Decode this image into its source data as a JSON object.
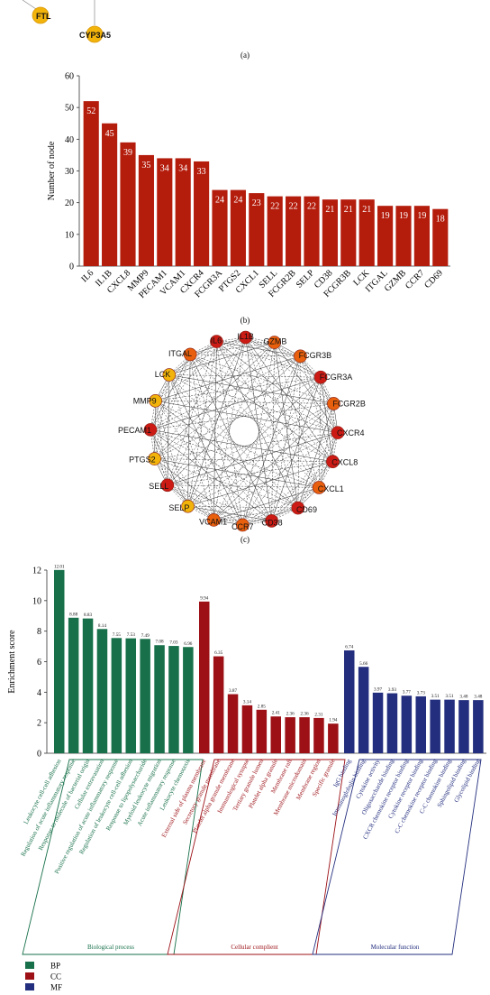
{
  "panel_a": {
    "caption": "(a)",
    "nodes": [
      {
        "label": "FTL",
        "color": "#f2b30b"
      },
      {
        "label": "CYP3A5",
        "color": "#f2b30b"
      }
    ]
  },
  "panel_b": {
    "caption": "(b)"
  },
  "panel_c": {
    "caption": "(c)",
    "nodes": [
      {
        "label": "IL1B",
        "color": "#cc1b14"
      },
      {
        "label": "GZMB",
        "color": "#e8600d"
      },
      {
        "label": "FCGR3B",
        "color": "#e8600d"
      },
      {
        "label": "FCGR3A",
        "color": "#cc1b14"
      },
      {
        "label": "FCGR2B",
        "color": "#e8600d"
      },
      {
        "label": "CXCR4",
        "color": "#cc1b14"
      },
      {
        "label": "CXCL8",
        "color": "#cc1b14"
      },
      {
        "label": "CXCL1",
        "color": "#e8600d"
      },
      {
        "label": "CD69",
        "color": "#cc1b14"
      },
      {
        "label": "CD38",
        "color": "#cc1b14"
      },
      {
        "label": "CCR7",
        "color": "#e8600d"
      },
      {
        "label": "VCAM1",
        "color": "#e8600d"
      },
      {
        "label": "SELP",
        "color": "#f2b30b"
      },
      {
        "label": "SELL",
        "color": "#cc1b14"
      },
      {
        "label": "PTGS2",
        "color": "#f2b30b"
      },
      {
        "label": "PECAM1",
        "color": "#cc1b14"
      },
      {
        "label": "MMP9",
        "color": "#f2b30b"
      },
      {
        "label": "LCK",
        "color": "#f2b30b"
      },
      {
        "label": "ITGAL",
        "color": "#e8600d"
      },
      {
        "label": "IL6",
        "color": "#cc1b14"
      }
    ]
  },
  "chart_data": [
    {
      "type": "bar",
      "ylabel": "Number of node",
      "ylim": [
        0,
        60
      ],
      "yticks": [
        0,
        10,
        20,
        30,
        40,
        50,
        60
      ],
      "bar_color": "#b41c0c",
      "categories": [
        "IL6",
        "IL1B",
        "CXCL8",
        "MMP9",
        "PECAM1",
        "VCAM1",
        "CXCR4",
        "FCGR3A",
        "PTGS2",
        "CXCL1",
        "SELL",
        "FCGR2B",
        "SELP",
        "CD38",
        "FCGR3B",
        "LCK",
        "ITGAL",
        "GZMB",
        "CCR7",
        "CD69"
      ],
      "values": [
        52,
        45,
        39,
        35,
        34,
        34,
        33,
        24,
        24,
        23,
        22,
        22,
        22,
        21,
        21,
        21,
        19,
        19,
        19,
        18
      ],
      "data_labels": [
        "52",
        "45",
        "39",
        "35",
        "34",
        "34",
        "33",
        "24",
        "24",
        "23",
        "22",
        "22",
        "22",
        "21",
        "21",
        "21",
        "19",
        "19",
        "19",
        "18"
      ]
    },
    {
      "type": "bar",
      "ylabel": "Enrichment score",
      "ylim": [
        0,
        12
      ],
      "yticks": [
        0,
        2,
        4,
        6,
        8,
        10,
        12
      ],
      "series": [
        {
          "name": "BP",
          "color": "#17704a",
          "group_label": "Biological process",
          "categories": [
            "Leukocyte cell-cell adhesion",
            "Regulation of acute inflammatory response",
            "Response to molecule of bacterial origin",
            "Cellular extravasation",
            "Positive regulation of acute inflammatory response",
            "Regulation of leukocyte cell-cell adhesion",
            "Response to lipopolysaccharide",
            "Myeloid leukocyte migration",
            "Acute inflammatory response",
            "Leukocyte chemotaxis"
          ],
          "values": [
            12.01,
            8.88,
            8.83,
            8.14,
            7.55,
            7.53,
            7.49,
            7.08,
            7.03,
            6.96
          ],
          "data_labels": [
            "12.01",
            "8.88",
            "8.83",
            "8.14",
            "7.55",
            "7.53",
            "7.49",
            "7.08",
            "7.03",
            "6.96"
          ]
        },
        {
          "name": "CC",
          "color": "#9c1016",
          "group_label": "Cellular complient",
          "categories": [
            "External side of plasma membrane",
            "Secretory granule membrane",
            "Platelet alpha granule membrane",
            "Immunological synapse",
            "Tertiary granule lumen",
            "Platelet alpha granule",
            "Membrane raft",
            "Membrane microdomain",
            "Membrane region",
            "Specific granule"
          ],
          "values": [
            9.94,
            6.35,
            3.87,
            3.14,
            2.85,
            2.41,
            2.36,
            2.36,
            2.31,
            1.94
          ],
          "data_labels": [
            "9.94",
            "6.35",
            "3.87",
            "3.14",
            "2.85",
            "2.41",
            "2.36",
            "2.36",
            "2.31",
            "1.94"
          ]
        },
        {
          "name": "MF",
          "color": "#232e7e",
          "group_label": "Molecular function",
          "categories": [
            "IgG binding",
            "Immunoglobulin binding",
            "Cytokine activity",
            "Oligosaccharide binding",
            "CXCR chemokine receptor binding",
            "Cytokine receptor binding",
            "C-C chemokine receptor binding",
            "C-C chemokine binding",
            "Sphingolipid binding",
            "Glycolipid binding"
          ],
          "values": [
            6.74,
            5.66,
            3.97,
            3.93,
            3.77,
            3.73,
            3.51,
            3.51,
            3.48,
            3.48
          ],
          "data_labels": [
            "6.74",
            "5.66",
            "3.97",
            "3.93",
            "3.77",
            "3.73",
            "3.51",
            "3.51",
            "3.48",
            "3.48"
          ]
        }
      ],
      "legend": [
        {
          "label": "BP",
          "color": "#17704a"
        },
        {
          "label": "CC",
          "color": "#9c1016"
        },
        {
          "label": "MF",
          "color": "#232e7e"
        }
      ],
      "legend_position": "bottom-left"
    }
  ]
}
